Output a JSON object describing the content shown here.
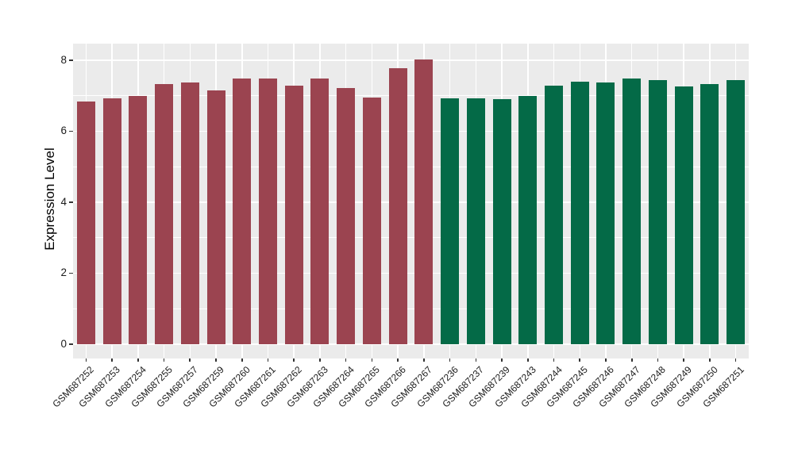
{
  "chart_data": {
    "type": "bar",
    "title": "",
    "ylabel": "Expression Level",
    "xlabel": "",
    "categories": [
      "GSM687252",
      "GSM687253",
      "GSM687254",
      "GSM687255",
      "GSM687257",
      "GSM687259",
      "GSM687260",
      "GSM687261",
      "GSM687262",
      "GSM687263",
      "GSM687264",
      "GSM687265",
      "GSM687266",
      "GSM687267",
      "GSM687236",
      "GSM687237",
      "GSM687239",
      "GSM687243",
      "GSM687244",
      "GSM687245",
      "GSM687246",
      "GSM687247",
      "GSM687248",
      "GSM687249",
      "GSM687250",
      "GSM687251"
    ],
    "values": [
      6.84,
      6.92,
      6.98,
      7.32,
      7.38,
      7.14,
      7.47,
      7.48,
      7.29,
      7.48,
      7.22,
      6.95,
      7.78,
      8.02,
      6.93,
      6.92,
      6.91,
      6.98,
      7.29,
      7.4,
      7.38,
      7.48,
      7.43,
      7.25,
      7.32,
      7.44
    ],
    "groups": [
      0,
      0,
      0,
      0,
      0,
      0,
      0,
      0,
      0,
      0,
      0,
      0,
      0,
      0,
      1,
      1,
      1,
      1,
      1,
      1,
      1,
      1,
      1,
      1,
      1,
      1
    ],
    "group_colors": [
      "#9B4450",
      "#046A47"
    ],
    "yticks": [
      0,
      2,
      4,
      6,
      8
    ],
    "minor_yticks": [
      1,
      3,
      5,
      7
    ],
    "ylim": [
      -0.4,
      8.46
    ],
    "grid": true,
    "legend": "none",
    "panel_bg": "#EBEBEB",
    "grid_color": "#FFFFFF",
    "tick_color": "#333333"
  }
}
